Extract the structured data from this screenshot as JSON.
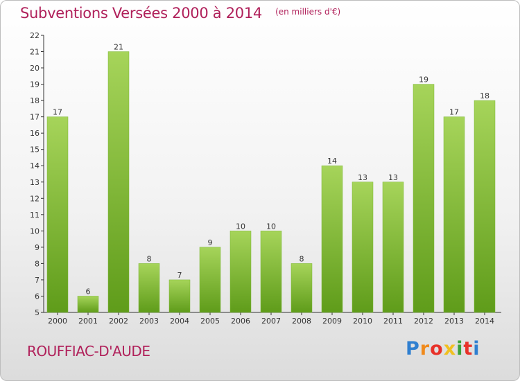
{
  "header": {
    "title": "Subventions Versées 2000 à 2014",
    "subtitle": "(en milliers d'€)"
  },
  "footer": {
    "commune": "ROUFFIAC-D'AUDE",
    "brand": "Proxiti",
    "brand_colors": [
      "#2f7fd0",
      "#f08a1c",
      "#e8322a",
      "#f0c020",
      "#3aa23a",
      "#e8322a",
      "#2f7fd0"
    ]
  },
  "colors": {
    "title": "#b0205a",
    "bar_light": "#a6d45a",
    "bar_dark": "#5f9c1a",
    "axis": "#333333"
  },
  "chart_data": {
    "type": "bar",
    "title": "Subventions Versées 2000 à 2014",
    "subtitle": "(en milliers d'€)",
    "categories": [
      "2000",
      "2001",
      "2002",
      "2003",
      "2004",
      "2005",
      "2006",
      "2007",
      "2008",
      "2009",
      "2010",
      "2011",
      "2012",
      "2013",
      "2014"
    ],
    "values": [
      17,
      6,
      21,
      8,
      7,
      9,
      10,
      10,
      8,
      14,
      13,
      13,
      19,
      17,
      18
    ],
    "ylim": [
      5,
      22
    ],
    "yticks": [
      5,
      6,
      7,
      8,
      9,
      10,
      11,
      12,
      13,
      14,
      15,
      16,
      17,
      18,
      19,
      20,
      21,
      22
    ],
    "grid": false,
    "legend": "none"
  }
}
